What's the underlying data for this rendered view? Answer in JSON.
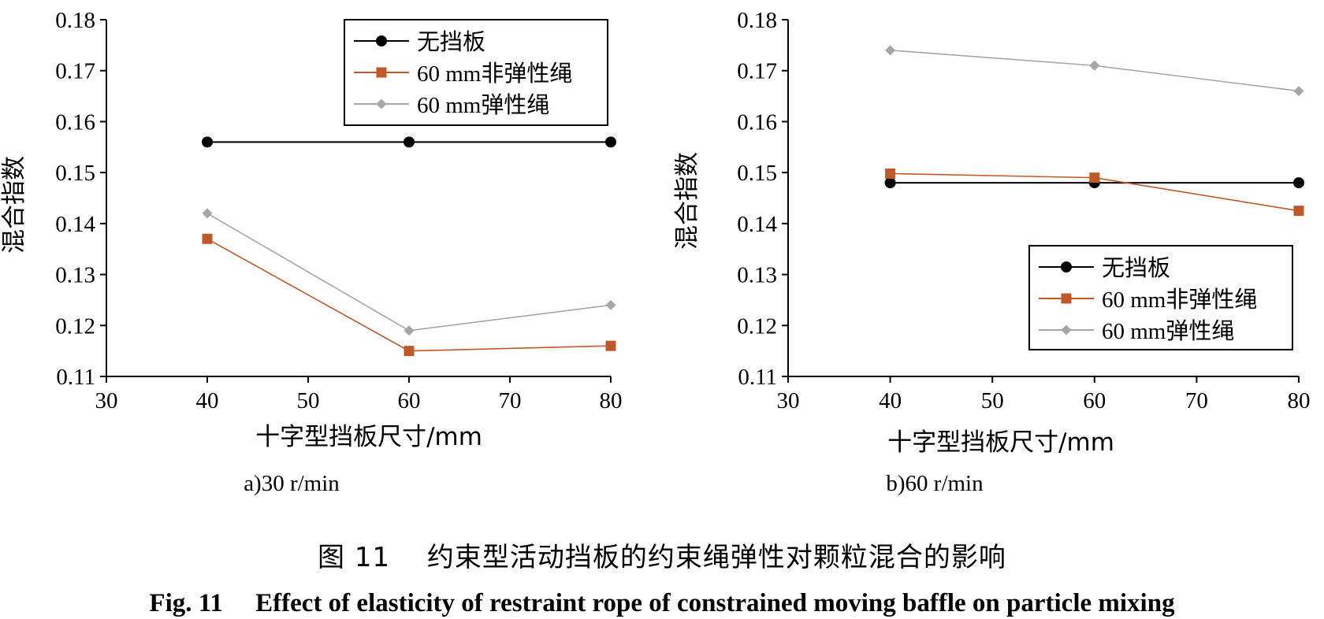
{
  "chart_data": [
    {
      "type": "line",
      "panel_label": "a)30 r/min",
      "xlabel": "十字型挡板尺寸/mm",
      "ylabel": "混合指数",
      "xlim": [
        30,
        80
      ],
      "ylim": [
        0.11,
        0.18
      ],
      "xticks": [
        "30",
        "40",
        "50",
        "60",
        "70",
        "80"
      ],
      "yticks": [
        "0.11",
        "0.12",
        "0.13",
        "0.14",
        "0.15",
        "0.16",
        "0.17",
        "0.18"
      ],
      "x": [
        40,
        60,
        80
      ],
      "legend_position": "top-right",
      "series": [
        {
          "name": "无挡板",
          "marker": "circle",
          "color": "#000000",
          "values": [
            0.156,
            0.156,
            0.156
          ]
        },
        {
          "name": "60 mm非弹性绳",
          "marker": "square",
          "color": "#C0592A",
          "values": [
            0.137,
            0.115,
            0.116
          ]
        },
        {
          "name": "60 mm弹性绳",
          "marker": "diamond",
          "color": "#A6A6A6",
          "values": [
            0.142,
            0.119,
            0.124
          ]
        }
      ]
    },
    {
      "type": "line",
      "panel_label": "b)60 r/min",
      "xlabel": "十字型挡板尺寸/mm",
      "ylabel": "混合指数",
      "xlim": [
        30,
        80
      ],
      "ylim": [
        0.11,
        0.18
      ],
      "xticks": [
        "30",
        "40",
        "50",
        "60",
        "70",
        "80"
      ],
      "yticks": [
        "0.11",
        "0.12",
        "0.13",
        "0.14",
        "0.15",
        "0.16",
        "0.17",
        "0.18"
      ],
      "x": [
        40,
        60,
        80
      ],
      "legend_position": "bottom-right",
      "series": [
        {
          "name": "无挡板",
          "marker": "circle",
          "color": "#000000",
          "values": [
            0.148,
            0.148,
            0.148
          ]
        },
        {
          "name": "60 mm非弹性绳",
          "marker": "square",
          "color": "#C0592A",
          "values": [
            0.1498,
            0.149,
            0.1425
          ]
        },
        {
          "name": "60 mm弹性绳",
          "marker": "diamond",
          "color": "#A6A6A6",
          "values": [
            0.174,
            0.171,
            0.166
          ]
        }
      ]
    }
  ],
  "caption": {
    "cn": "图 11　 约束型活动挡板的约束绳弹性对颗粒混合的影响",
    "en": "Fig. 11　 Effect of elasticity of restraint rope of constrained moving baffle on particle mixing"
  }
}
